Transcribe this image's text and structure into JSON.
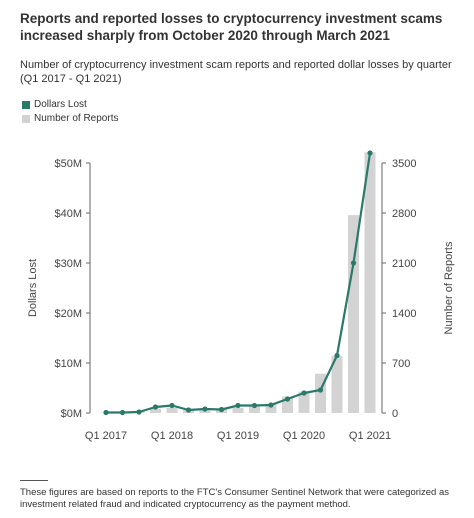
{
  "title": "Reports and reported losses to cryptocurrency investment scams increased sharply from October 2020 through March 2021",
  "subtitle": "Number of cryptocurrency investment scam reports and reported dollar losses by quarter (Q1 2017 - Q1 2021)",
  "footnote": "These figures are based on reports to the FTC's Consumer Sentinel Network that were categorized as investment related fraud and indicated cryptocurrency as the payment method.",
  "colors": {
    "line": "#2a7a6b",
    "bars": "#d3d3d3",
    "axis_text": "#444444"
  },
  "chart_data": {
    "type": "bar",
    "categories": [
      "Q1 2017",
      "Q2 2017",
      "Q3 2017",
      "Q4 2017",
      "Q1 2018",
      "Q2 2018",
      "Q3 2018",
      "Q4 2018",
      "Q1 2019",
      "Q2 2019",
      "Q3 2019",
      "Q4 2019",
      "Q1 2020",
      "Q2 2020",
      "Q3 2020",
      "Q4 2020",
      "Q1 2021"
    ],
    "tick_labels": [
      "Q1 2017",
      "Q1 2018",
      "Q1 2019",
      "Q1 2020",
      "Q1 2021"
    ],
    "tick_indices": [
      0,
      4,
      8,
      12,
      16
    ],
    "series": [
      {
        "name": "Dollars Lost",
        "axis": "left",
        "kind": "line",
        "values": [
          0.1,
          0.1,
          0.2,
          1.2,
          1.5,
          0.6,
          0.8,
          0.7,
          1.5,
          1.5,
          1.6,
          2.8,
          4.0,
          4.6,
          11.5,
          30.0,
          52.0
        ]
      },
      {
        "name": "Number of Reports",
        "axis": "right",
        "kind": "bar",
        "values": [
          5,
          10,
          30,
          60,
          70,
          40,
          40,
          50,
          70,
          90,
          130,
          230,
          300,
          550,
          800,
          2770,
          3650
        ]
      }
    ],
    "ylabel": "Dollars Lost",
    "y2label": "Number of Reports",
    "ylim": [
      0,
      52.5
    ],
    "y2lim": [
      0,
      3675
    ],
    "yticks": [
      0,
      10,
      20,
      30,
      40,
      50
    ],
    "yticklabels": [
      "$0M",
      "$10M",
      "$20M",
      "$30M",
      "$40M",
      "$50M"
    ],
    "y2ticks": [
      0,
      700,
      1400,
      2100,
      2800,
      3500
    ],
    "y2ticklabels": [
      "0",
      "700",
      "1400",
      "2100",
      "2800",
      "3500"
    ],
    "grid": false,
    "legend": "top-left"
  }
}
